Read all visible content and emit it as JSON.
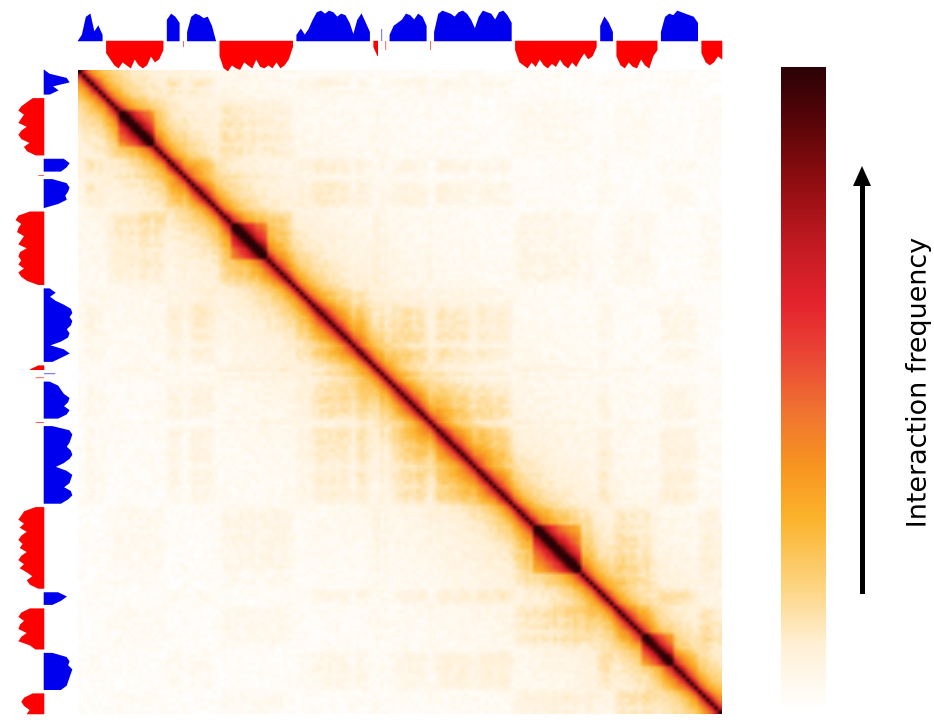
{
  "chart_data": {
    "type": "heatmap",
    "title": "",
    "xlabel": "",
    "ylabel": "",
    "matrix_size": 160,
    "diagonal_domains": [
      {
        "start": 10,
        "end": 18,
        "strength": 0.9
      },
      {
        "start": 38,
        "end": 46,
        "strength": 0.95
      },
      {
        "start": 113,
        "end": 124,
        "strength": 0.95
      },
      {
        "start": 140,
        "end": 147,
        "strength": 0.8
      }
    ],
    "compartment_track": {
      "colors": {
        "positive": "#0000ee",
        "negative": "#ff0000"
      },
      "values": [
        0.0,
        0.2,
        0.8,
        0.9,
        0.3,
        0.5,
        0.2,
        -0.4,
        -0.6,
        -0.8,
        -0.9,
        -0.7,
        -0.8,
        -0.9,
        -0.6,
        -0.8,
        -0.9,
        -0.8,
        -0.5,
        -0.7,
        -0.6,
        -0.3,
        0.7,
        0.9,
        0.8,
        0.6,
        -0.2,
        0.3,
        0.8,
        0.9,
        0.85,
        0.75,
        0.8,
        0.5,
        0.0,
        -0.5,
        -0.9,
        -1.0,
        -0.8,
        -0.9,
        -0.95,
        -0.7,
        -0.8,
        -0.9,
        -0.6,
        -0.85,
        -0.9,
        -0.8,
        -0.9,
        -0.7,
        -0.9,
        -0.8,
        -0.6,
        -0.2,
        0.2,
        0.4,
        0.2,
        0.4,
        0.7,
        0.95,
        1.0,
        0.9,
        1.0,
        0.95,
        0.8,
        0.9,
        0.85,
        0.6,
        0.2,
        0.7,
        0.9,
        0.6,
        0.3,
        -0.2,
        -0.5,
        0.4,
        -0.3,
        0.2,
        0.5,
        0.6,
        0.7,
        0.9,
        0.85,
        0.7,
        0.9,
        0.8,
        0.5,
        -0.3,
        0.3,
        0.9,
        1.0,
        0.95,
        0.9,
        0.8,
        0.95,
        1.0,
        0.9,
        0.7,
        0.4,
        0.8,
        1.0,
        0.95,
        0.9,
        0.7,
        0.95,
        1.0,
        0.85,
        0.6,
        -0.3,
        -0.7,
        -0.8,
        -0.9,
        -0.7,
        -0.85,
        -0.6,
        -0.8,
        -0.9,
        -0.75,
        -0.85,
        -0.6,
        -0.8,
        -0.9,
        -0.7,
        -0.85,
        -0.6,
        -0.4,
        -0.6,
        -0.5,
        -0.2,
        0.5,
        0.8,
        0.6,
        0.3,
        -0.5,
        -0.8,
        -0.9,
        -0.7,
        -0.85,
        -0.9,
        -0.6,
        -0.8,
        -0.9,
        -0.5,
        -0.3,
        0.3,
        0.8,
        0.9,
        0.85,
        1.0,
        0.95,
        0.9,
        0.85,
        0.8,
        0.6,
        -0.4,
        -0.7,
        -0.8,
        -0.7,
        -0.5,
        -0.6
      ]
    },
    "colorbar": {
      "label": "Interaction frequency",
      "direction": "increasing upward",
      "colors": [
        "#ffffff",
        "#fdd27a",
        "#f79420",
        "#e5242d",
        "#8a0c0f",
        "#2a0206"
      ]
    }
  }
}
